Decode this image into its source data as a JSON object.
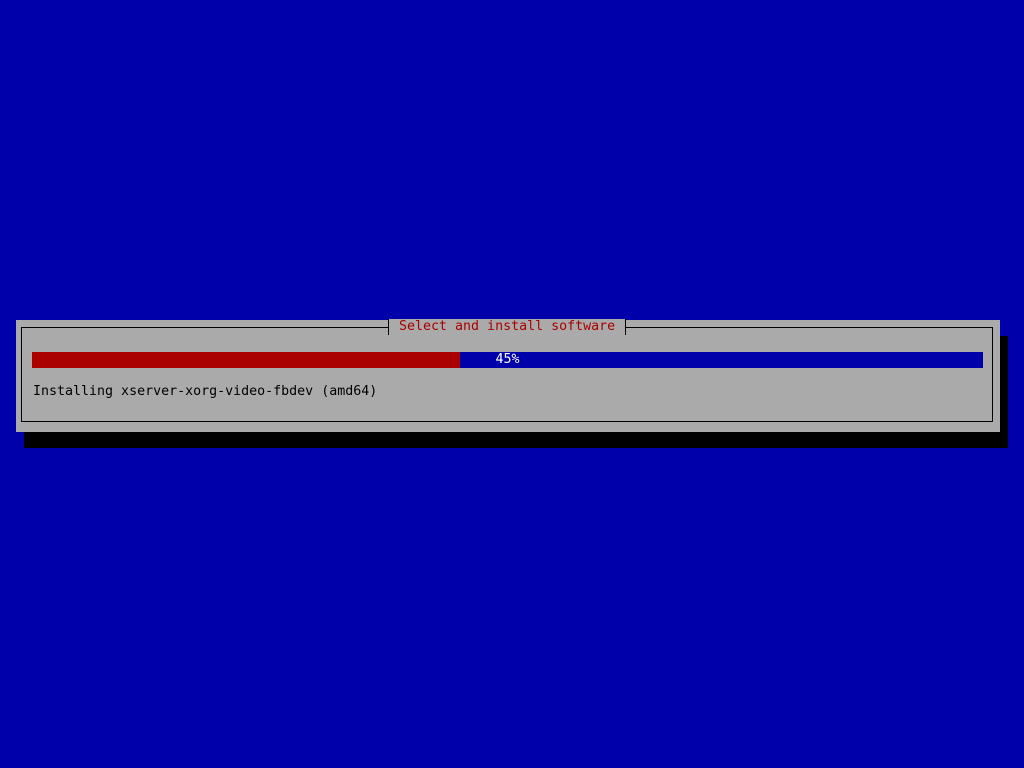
{
  "dialog": {
    "title": "Select and install software",
    "progress_percent": 45,
    "progress_label": "45%",
    "status_text": "Installing xserver-xorg-video-fbdev (amd64)"
  },
  "colors": {
    "background": "#0000aa",
    "dialog": "#aaaaaa",
    "progress_fill": "#aa0000",
    "title_text": "#aa0000"
  }
}
